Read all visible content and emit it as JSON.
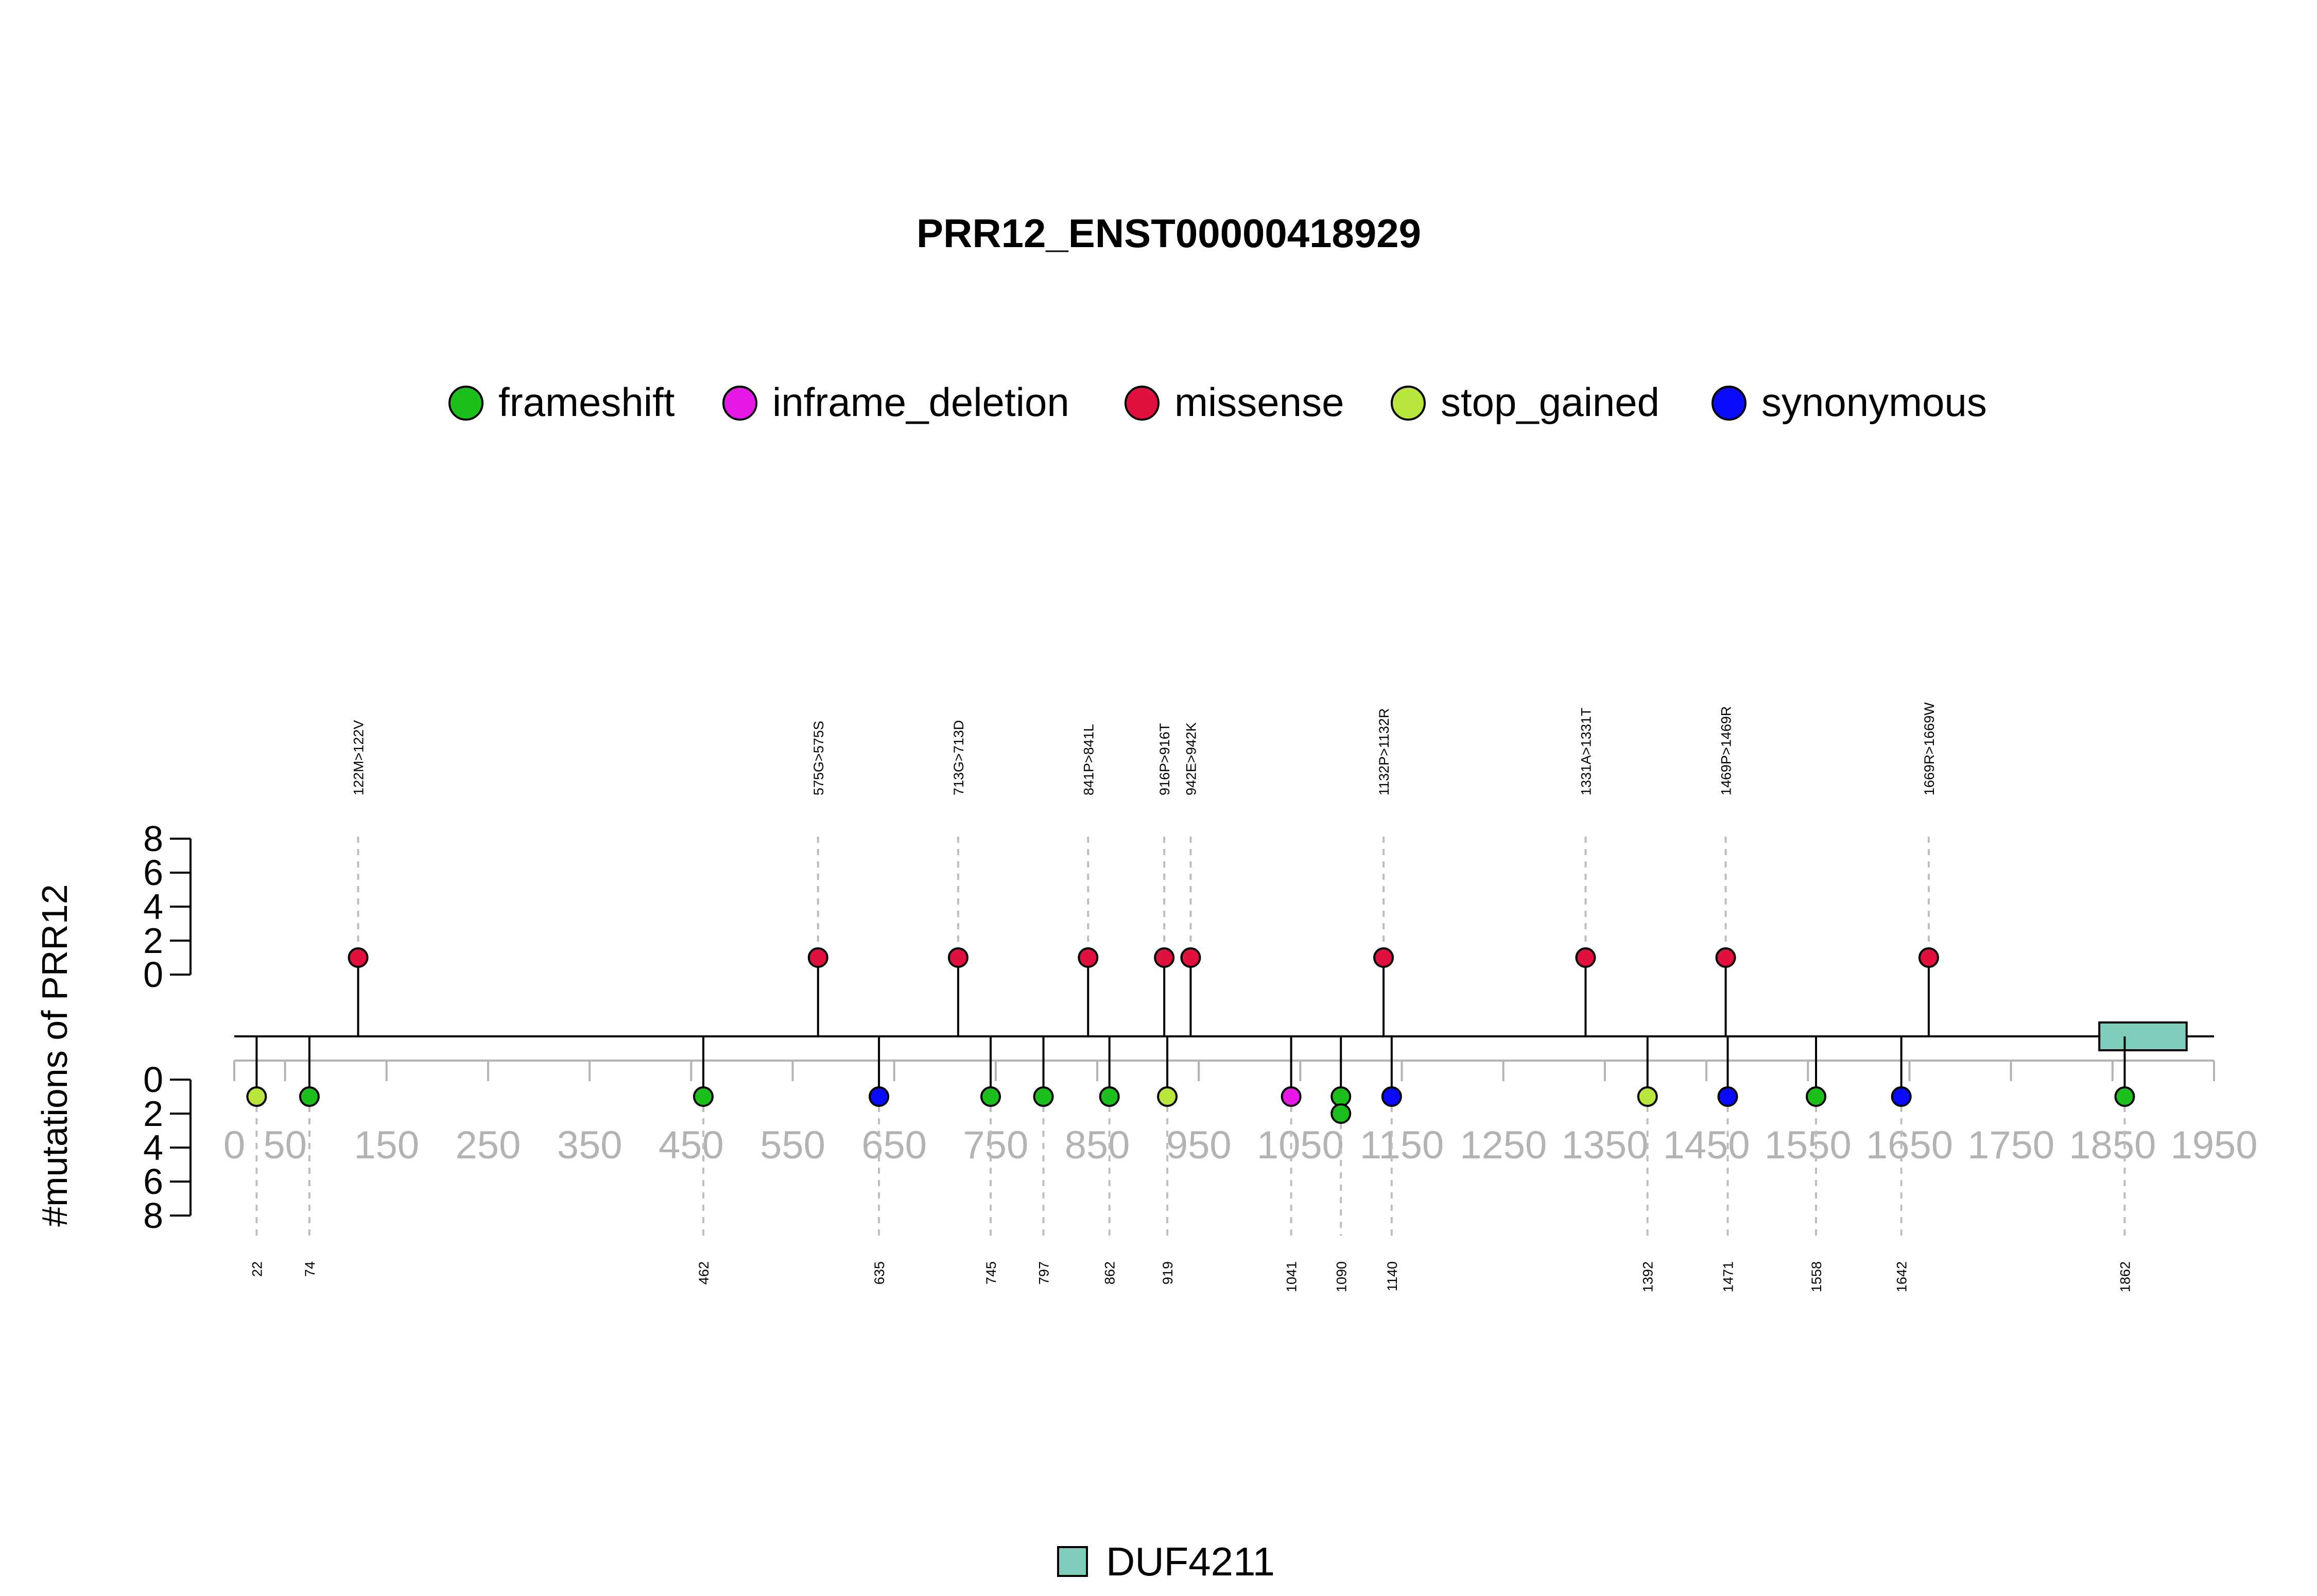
{
  "chart_data": {
    "type": "lollipop",
    "title": "PRR12_ENST00000418929",
    "ylabel": "#mutations of PRR12",
    "xlim": [
      0,
      1950
    ],
    "x_ticks": [
      0,
      50,
      150,
      250,
      350,
      450,
      550,
      650,
      750,
      850,
      950,
      1050,
      1150,
      1250,
      1350,
      1450,
      1550,
      1650,
      1750,
      1850,
      1950
    ],
    "y_ticks": [
      0,
      2,
      4,
      6,
      8
    ],
    "ylim": [
      0,
      8
    ],
    "legend": {
      "placement": "top",
      "items": [
        {
          "name": "frameshift",
          "color": "#1dbf1d"
        },
        {
          "name": "inframe_deletion",
          "color": "#e619e6"
        },
        {
          "name": "missense",
          "color": "#e0103f"
        },
        {
          "name": "stop_gained",
          "color": "#b8e63c"
        },
        {
          "name": "synonymous",
          "color": "#0a0aff"
        }
      ]
    },
    "top_mutations": [
      {
        "pos": 122,
        "label": "122M>122V",
        "count": 1,
        "type": "missense"
      },
      {
        "pos": 575,
        "label": "575G>575S",
        "count": 1,
        "type": "missense"
      },
      {
        "pos": 713,
        "label": "713G>713D",
        "count": 1,
        "type": "missense"
      },
      {
        "pos": 841,
        "label": "841P>841L",
        "count": 1,
        "type": "missense"
      },
      {
        "pos": 916,
        "label": "916P>916T",
        "count": 1,
        "type": "missense"
      },
      {
        "pos": 942,
        "label": "942E>942K",
        "count": 1,
        "type": "missense"
      },
      {
        "pos": 1132,
        "label": "1132P>1132R",
        "count": 1,
        "type": "missense"
      },
      {
        "pos": 1331,
        "label": "1331A>1331T",
        "count": 1,
        "type": "missense"
      },
      {
        "pos": 1469,
        "label": "1469P>1469R",
        "count": 1,
        "type": "missense"
      },
      {
        "pos": 1669,
        "label": "1669R>1669W",
        "count": 1,
        "type": "missense"
      }
    ],
    "bottom_mutations": [
      {
        "pos": 22,
        "label": "22",
        "count": 1,
        "type": "stop_gained"
      },
      {
        "pos": 74,
        "label": "74",
        "count": 1,
        "type": "frameshift"
      },
      {
        "pos": 462,
        "label": "462",
        "count": 1,
        "type": "frameshift"
      },
      {
        "pos": 635,
        "label": "635",
        "count": 1,
        "type": "synonymous"
      },
      {
        "pos": 745,
        "label": "745",
        "count": 1,
        "type": "frameshift"
      },
      {
        "pos": 797,
        "label": "797",
        "count": 1,
        "type": "frameshift"
      },
      {
        "pos": 862,
        "label": "862",
        "count": 1,
        "type": "frameshift"
      },
      {
        "pos": 919,
        "label": "919",
        "count": 1,
        "type": "stop_gained"
      },
      {
        "pos": 1041,
        "label": "1041",
        "count": 1,
        "type": "inframe_deletion"
      },
      {
        "pos": 1090,
        "label": "1090",
        "count": 2,
        "type": "frameshift"
      },
      {
        "pos": 1140,
        "label": "1140",
        "count": 1,
        "type": "synonymous"
      },
      {
        "pos": 1392,
        "label": "1392",
        "count": 1,
        "type": "stop_gained"
      },
      {
        "pos": 1471,
        "label": "1471",
        "count": 1,
        "type": "synonymous"
      },
      {
        "pos": 1558,
        "label": "1558",
        "count": 1,
        "type": "frameshift"
      },
      {
        "pos": 1642,
        "label": "1642",
        "count": 1,
        "type": "synonymous"
      },
      {
        "pos": 1862,
        "label": "1862",
        "count": 1,
        "type": "frameshift"
      }
    ],
    "domains": [
      {
        "name": "DUF4211",
        "start": 1837,
        "end": 1923,
        "color": "#7fcdbb"
      }
    ]
  }
}
